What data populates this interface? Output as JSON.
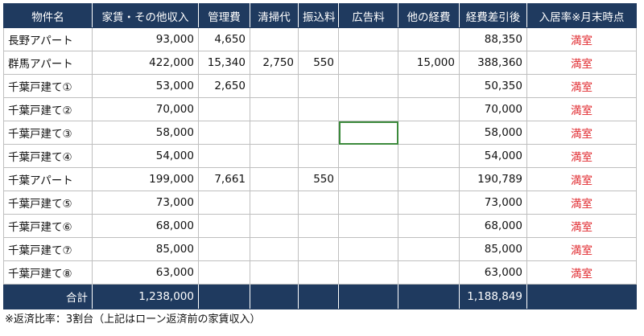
{
  "headers": {
    "name": "物件名",
    "rent": "家賃・その他収入",
    "mgmt": "管理費",
    "cleaning": "清掃代",
    "transfer": "振込料",
    "ad": "広告料",
    "other": "他の経費",
    "net": "経費差引後",
    "occupancy": "入居率※月末時点"
  },
  "rows": [
    {
      "name": "長野アパート",
      "rent": "93,000",
      "mgmt": "4,650",
      "cleaning": "",
      "transfer": "",
      "ad": "",
      "other": "",
      "net": "88,350",
      "status": "満室"
    },
    {
      "name": "群馬アパート",
      "rent": "422,000",
      "mgmt": "15,340",
      "cleaning": "2,750",
      "transfer": "550",
      "ad": "",
      "other": "15,000",
      "net": "388,360",
      "status": "満室"
    },
    {
      "name": "千葉戸建て①",
      "rent": "53,000",
      "mgmt": "2,650",
      "cleaning": "",
      "transfer": "",
      "ad": "",
      "other": "",
      "net": "50,350",
      "status": "満室"
    },
    {
      "name": "千葉戸建て②",
      "rent": "70,000",
      "mgmt": "",
      "cleaning": "",
      "transfer": "",
      "ad": "",
      "other": "",
      "net": "70,000",
      "status": "満室"
    },
    {
      "name": "千葉戸建て③",
      "rent": "58,000",
      "mgmt": "",
      "cleaning": "",
      "transfer": "",
      "ad": "",
      "other": "",
      "net": "58,000",
      "status": "満室"
    },
    {
      "name": "千葉戸建て④",
      "rent": "54,000",
      "mgmt": "",
      "cleaning": "",
      "transfer": "",
      "ad": "",
      "other": "",
      "net": "54,000",
      "status": "満室"
    },
    {
      "name": "千葉アパート",
      "rent": "199,000",
      "mgmt": "7,661",
      "cleaning": "",
      "transfer": "550",
      "ad": "",
      "other": "",
      "net": "190,789",
      "status": "満室"
    },
    {
      "name": "千葉戸建て⑤",
      "rent": "73,000",
      "mgmt": "",
      "cleaning": "",
      "transfer": "",
      "ad": "",
      "other": "",
      "net": "73,000",
      "status": "満室"
    },
    {
      "name": "千葉戸建て⑥",
      "rent": "68,000",
      "mgmt": "",
      "cleaning": "",
      "transfer": "",
      "ad": "",
      "other": "",
      "net": "68,000",
      "status": "満室"
    },
    {
      "name": "千葉戸建て⑦",
      "rent": "85,000",
      "mgmt": "",
      "cleaning": "",
      "transfer": "",
      "ad": "",
      "other": "",
      "net": "85,000",
      "status": "満室"
    },
    {
      "name": "千葉戸建て⑧",
      "rent": "63,000",
      "mgmt": "",
      "cleaning": "",
      "transfer": "",
      "ad": "",
      "other": "",
      "net": "63,000",
      "status": "満室"
    }
  ],
  "total": {
    "label": "合計",
    "rent": "1,238,000",
    "net": "1,188,849"
  },
  "footnote": "※返済比率：3割台（上記はローン返済前の家賃収入）",
  "colors": {
    "header_bg": "#1f3a5f",
    "status_red": "#e0262b",
    "selection_green": "#3c8a3c"
  }
}
